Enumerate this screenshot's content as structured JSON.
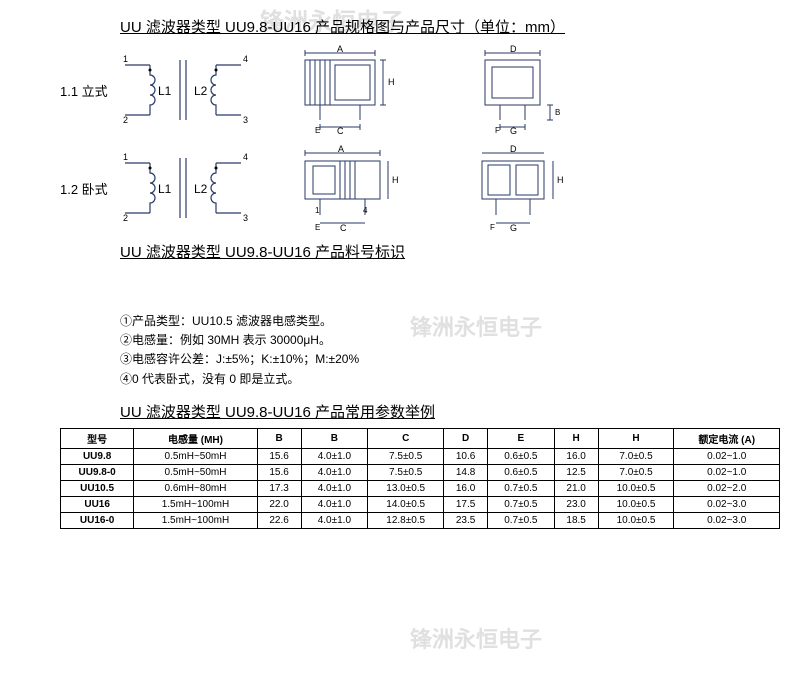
{
  "watermarks": {
    "top": "锋洲永恒电子",
    "mid": "锋洲永恒电子",
    "bot": "锋洲永恒电子"
  },
  "section1": {
    "title": "UU 滤波器类型 UU9.8-UU16 产品规格图与产品尺寸（单位：mm）",
    "row1_label": "1.1 立式",
    "row2_label": "1.2 卧式",
    "L1": "L1",
    "L2": "L2"
  },
  "section2": {
    "title": "UU 滤波器类型 UU9.8-UU16 产品料号标识"
  },
  "notes": {
    "n1": "①产品类型：UU10.5 滤波器电感类型。",
    "n2": "②电感量：例如 30MH 表示 30000μH。",
    "n3": "③电感容许公差：J:±5%；K:±10%；M:±20%",
    "n4": "④0 代表卧式，没有 0 即是立式。"
  },
  "section3": {
    "title": "UU 滤波器类型 UU9.8-UU16 产品常用参数举例"
  },
  "table": {
    "headers": [
      "型号",
      "电感量 (MH)",
      "B",
      "B",
      "C",
      "D",
      "E",
      "H",
      "H",
      "额定电流 (A)"
    ],
    "rows": [
      [
        "UU9.8",
        "0.5mH~50mH",
        "15.6",
        "4.0±1.0",
        "7.5±0.5",
        "10.6",
        "0.6±0.5",
        "16.0",
        "7.0±0.5",
        "0.02~1.0"
      ],
      [
        "UU9.8-0",
        "0.5mH~50mH",
        "15.6",
        "4.0±1.0",
        "7.5±0.5",
        "14.8",
        "0.6±0.5",
        "12.5",
        "7.0±0.5",
        "0.02~1.0"
      ],
      [
        "UU10.5",
        "0.6mH~80mH",
        "17.3",
        "4.0±1.0",
        "13.0±0.5",
        "16.0",
        "0.7±0.5",
        "21.0",
        "10.0±0.5",
        "0.02~2.0"
      ],
      [
        "UU16",
        "1.5mH~100mH",
        "22.0",
        "4.0±1.0",
        "14.0±0.5",
        "17.5",
        "0.7±0.5",
        "23.0",
        "10.0±0.5",
        "0.02~3.0"
      ],
      [
        "UU16-0",
        "1.5mH~100mH",
        "22.6",
        "4.0±1.0",
        "12.8±0.5",
        "23.5",
        "0.7±0.5",
        "18.5",
        "10.0±0.5",
        "0.02~3.0"
      ]
    ]
  },
  "diag_letters": {
    "A": "A",
    "B": "B",
    "C": "C",
    "D": "D",
    "E": "E",
    "F": "F",
    "G": "G",
    "H": "H"
  },
  "pins": {
    "p1": "1",
    "p2": "2",
    "p3": "3",
    "p4": "4"
  },
  "style": {
    "stroke": "#2a3a6a",
    "text_color": "#000000",
    "table_border": "#000000",
    "watermark_color": "#e0e0e0",
    "background": "#ffffff",
    "title_fontsize": 15,
    "body_fontsize": 12,
    "table_fontsize": 10
  }
}
